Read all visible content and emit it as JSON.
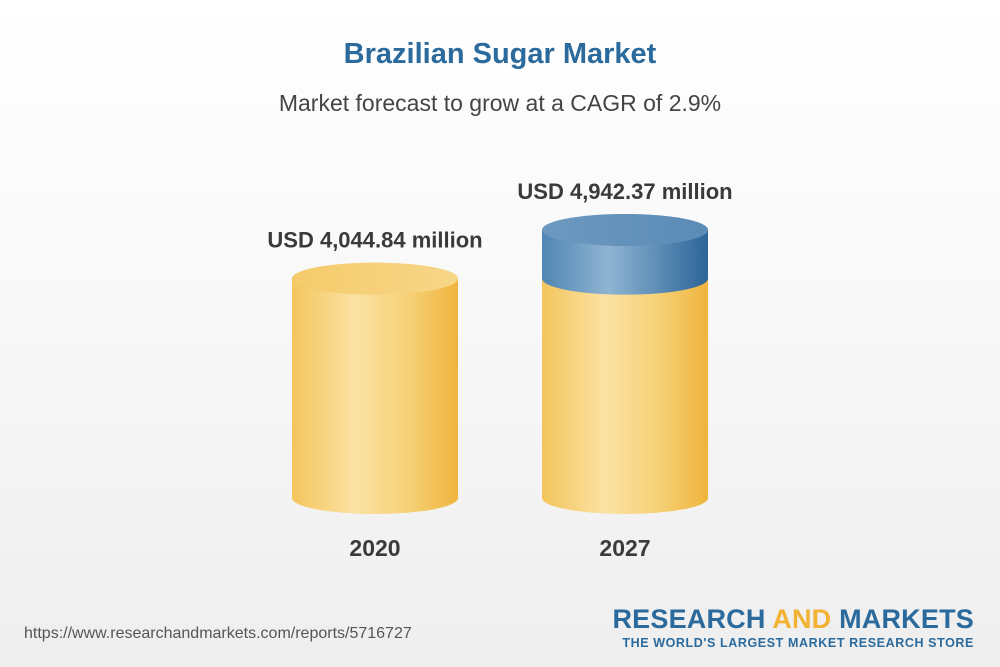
{
  "chart_data": {
    "type": "bar",
    "title": "Brazilian Sugar Market",
    "subtitle": "Market forecast to grow at a CAGR of 2.9%",
    "categories": [
      "2020",
      "2027"
    ],
    "values": [
      4044.84,
      4942.37
    ],
    "value_labels": [
      "USD 4,044.84 million",
      "USD 4,942.37 million"
    ],
    "base_color": "#f2c24e",
    "growth_color": "#3f7fb0"
  },
  "footer": {
    "url": "https://www.researchandmarkets.com/reports/5716727",
    "brand_part1": "RESEARCH ",
    "brand_part2": "AND",
    "brand_part3": " MARKETS",
    "brand_tagline": "THE WORLD'S LARGEST MARKET RESEARCH STORE"
  }
}
